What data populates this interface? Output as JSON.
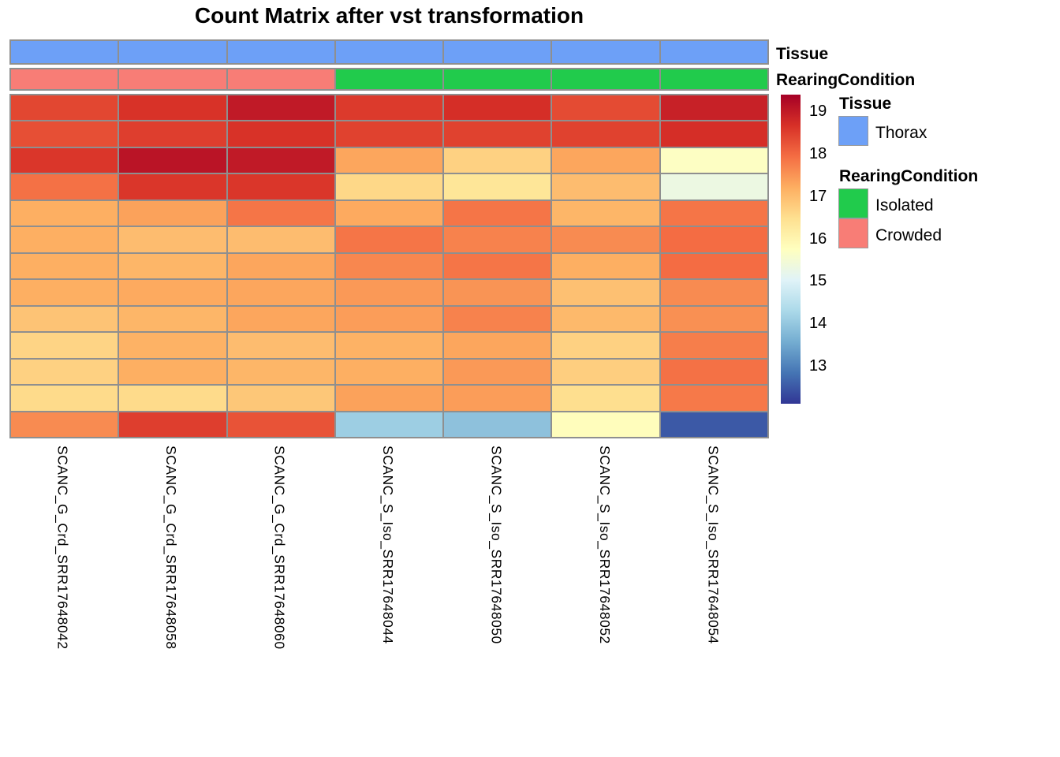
{
  "title": "Count Matrix after vst transformation",
  "annotation_bars": [
    {
      "name": "Tissue",
      "values": [
        "Thorax",
        "Thorax",
        "Thorax",
        "Thorax",
        "Thorax",
        "Thorax",
        "Thorax"
      ],
      "color_map": {
        "Thorax": "#6DA0F7"
      }
    },
    {
      "name": "RearingCondition",
      "values": [
        "Crowded",
        "Crowded",
        "Crowded",
        "Isolated",
        "Isolated",
        "Isolated",
        "Isolated"
      ],
      "color_map": {
        "Isolated": "#21CB4C",
        "Crowded": "#F87D76"
      }
    }
  ],
  "legend": {
    "groups": [
      {
        "title": "Tissue",
        "items": [
          {
            "label": "Thorax",
            "color": "#6DA0F7"
          }
        ]
      },
      {
        "title": "RearingCondition",
        "items": [
          {
            "label": "Isolated",
            "color": "#21CB4C"
          },
          {
            "label": "Crowded",
            "color": "#F87D76"
          }
        ]
      }
    ]
  },
  "chart_data": {
    "type": "heatmap",
    "title": "Count Matrix after vst transformation",
    "columns": [
      "SCANC_G_Crd_SRR17648042",
      "SCANC_G_Crd_SRR17648058",
      "SCANC_G_Crd_SRR17648060",
      "SCANC_S_Iso_SRR17648044",
      "SCANC_S_Iso_SRR17648050",
      "SCANC_S_Iso_SRR17648052",
      "SCANC_S_Iso_SRR17648054"
    ],
    "column_groups": {
      "Tissue": [
        "Thorax",
        "Thorax",
        "Thorax",
        "Thorax",
        "Thorax",
        "Thorax",
        "Thorax"
      ],
      "RearingCondition": [
        "Crowded",
        "Crowded",
        "Crowded",
        "Isolated",
        "Isolated",
        "Isolated",
        "Isolated"
      ]
    },
    "values": [
      [
        18.4,
        18.65,
        19.0,
        18.55,
        18.7,
        18.35,
        18.9
      ],
      [
        18.3,
        18.5,
        18.65,
        18.45,
        18.45,
        18.45,
        18.7
      ],
      [
        18.6,
        19.1,
        19.0,
        17.3,
        16.7,
        17.3,
        15.7
      ],
      [
        17.9,
        18.6,
        18.6,
        16.6,
        16.35,
        17.0,
        15.3
      ],
      [
        17.2,
        17.35,
        17.85,
        17.25,
        17.85,
        17.1,
        17.85
      ],
      [
        17.2,
        17.0,
        17.0,
        17.85,
        17.7,
        17.6,
        17.95
      ],
      [
        17.2,
        17.1,
        17.3,
        17.65,
        17.85,
        17.2,
        17.95
      ],
      [
        17.2,
        17.25,
        17.3,
        17.45,
        17.5,
        16.95,
        17.6
      ],
      [
        16.9,
        17.1,
        17.3,
        17.4,
        17.7,
        17.05,
        17.55
      ],
      [
        16.65,
        17.15,
        17.0,
        17.15,
        17.3,
        16.7,
        17.75
      ],
      [
        16.7,
        17.2,
        17.1,
        17.2,
        17.45,
        16.75,
        17.9
      ],
      [
        16.55,
        16.55,
        16.85,
        17.35,
        17.4,
        16.5,
        17.8
      ],
      [
        17.6,
        18.5,
        18.25,
        14.1,
        13.9,
        15.8,
        12.5
      ]
    ],
    "color_scale": {
      "palette_low_to_high": [
        "#313695",
        "#4575B4",
        "#74ADD1",
        "#ABD9E9",
        "#E0F3F8",
        "#FFFFBF",
        "#FEE090",
        "#FDAE61",
        "#F46D43",
        "#D73027",
        "#A50026"
      ],
      "domain": [
        12.1,
        19.4
      ],
      "ticks": [
        19,
        18,
        17,
        16,
        15,
        14,
        13
      ]
    },
    "legend_position": "right",
    "grid_color": "#8f8f8f"
  }
}
